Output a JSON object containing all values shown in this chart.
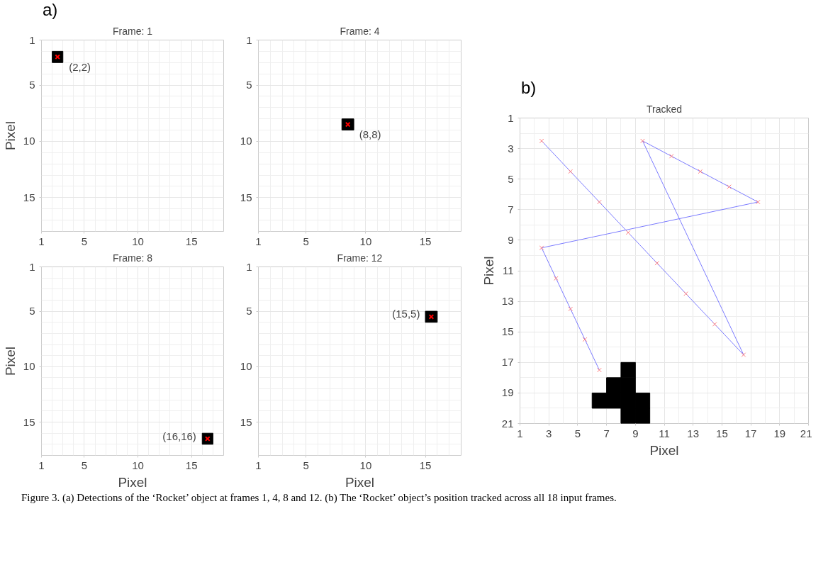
{
  "chart_data": [
    {
      "type": "scatter",
      "title": "Frame: 1",
      "ylabel": "Pixel",
      "annotations": [
        "a)",
        {
          "text": "(2,2)",
          "x": 2.5,
          "y": 2.5
        }
      ],
      "xlim": [
        1,
        18
      ],
      "ylim": [
        18,
        1
      ],
      "xticks": [
        1,
        5,
        10,
        15
      ],
      "yticks": [
        1,
        5,
        10,
        15
      ],
      "grid": true,
      "series": [
        {
          "type": "scatter",
          "marker": "square",
          "color": "#000000",
          "x": [
            2.5
          ],
          "values": [
            2.5
          ]
        },
        {
          "type": "scatter",
          "marker": "cross",
          "color": "#ff0000",
          "x": [
            2.5
          ],
          "values": [
            2.5
          ]
        }
      ]
    },
    {
      "type": "scatter",
      "title": "Frame: 4",
      "annotations": [
        {
          "text": "(8,8)",
          "x": 8.5,
          "y": 8.5
        }
      ],
      "xlim": [
        1,
        18
      ],
      "ylim": [
        18,
        1
      ],
      "xticks": [
        1,
        5,
        10,
        15
      ],
      "yticks": [
        1,
        5,
        10,
        15
      ],
      "grid": true,
      "series": [
        {
          "type": "scatter",
          "marker": "square",
          "color": "#000000",
          "x": [
            8.5
          ],
          "values": [
            8.5
          ]
        },
        {
          "type": "scatter",
          "marker": "cross",
          "color": "#ff0000",
          "x": [
            8.5
          ],
          "values": [
            8.5
          ]
        }
      ]
    },
    {
      "type": "scatter",
      "title": "Frame: 8",
      "xlabel": "Pixel",
      "ylabel": "Pixel",
      "annotations": [
        {
          "text": "(16,16)",
          "x": 16.5,
          "y": 16.5
        }
      ],
      "xlim": [
        1,
        18
      ],
      "ylim": [
        18,
        1
      ],
      "xticks": [
        1,
        5,
        10,
        15
      ],
      "yticks": [
        1,
        5,
        10,
        15
      ],
      "grid": true,
      "series": [
        {
          "type": "scatter",
          "marker": "square",
          "color": "#000000",
          "x": [
            16.5
          ],
          "values": [
            16.5
          ]
        },
        {
          "type": "scatter",
          "marker": "cross",
          "color": "#ff0000",
          "x": [
            16.5
          ],
          "values": [
            16.5
          ]
        }
      ]
    },
    {
      "type": "scatter",
      "title": "Frame: 12",
      "xlabel": "Pixel",
      "annotations": [
        {
          "text": "(15,5)",
          "x": 15.5,
          "y": 5.5
        }
      ],
      "xlim": [
        1,
        18
      ],
      "ylim": [
        18,
        1
      ],
      "xticks": [
        1,
        5,
        10,
        15
      ],
      "yticks": [
        1,
        5,
        10,
        15
      ],
      "grid": true,
      "series": [
        {
          "type": "scatter",
          "marker": "square",
          "color": "#000000",
          "x": [
            15.5
          ],
          "values": [
            5.5
          ]
        },
        {
          "type": "scatter",
          "marker": "cross",
          "color": "#ff0000",
          "x": [
            15.5
          ],
          "values": [
            5.5
          ]
        }
      ]
    },
    {
      "type": "line",
      "title": "Tracked",
      "xlabel": "Pixel",
      "ylabel": "Pixel",
      "annotations": [
        "b)",
        "Figure 3. (a) Detections of the ‘Rocket’ object at frames 1, 4, 8 and 12. (b) The ‘Rocket’ object’s position tracked across all 18 input frames."
      ],
      "xlim": [
        1,
        21
      ],
      "ylim": [
        21,
        1
      ],
      "xticks": [
        1,
        3,
        5,
        7,
        9,
        11,
        13,
        15,
        17,
        19,
        21
      ],
      "yticks": [
        1,
        3,
        5,
        7,
        9,
        11,
        13,
        15,
        17,
        19,
        21
      ],
      "grid": true,
      "series": [
        {
          "type": "scatter",
          "marker": "square",
          "color": "#000000",
          "x": [
            8.5,
            7.5,
            8.5,
            6.5,
            7.5,
            8.5,
            9.5,
            8.5,
            9.5
          ],
          "values": [
            17.5,
            18.5,
            18.5,
            19.5,
            19.5,
            19.5,
            19.5,
            20.5,
            20.5
          ]
        },
        {
          "type": "line",
          "marker": "none",
          "color": "#7b7bff",
          "x": [
            2.5,
            4.5,
            6.5,
            8.5,
            10.5,
            12.5,
            14.5,
            16.5,
            9.5,
            11.5,
            13.5,
            15.5,
            17.5,
            2.5,
            3.5,
            4.5,
            5.5,
            6.5
          ],
          "values": [
            2.5,
            4.5,
            6.5,
            8.5,
            10.5,
            12.5,
            14.5,
            16.5,
            2.5,
            3.5,
            4.5,
            5.5,
            6.5,
            9.5,
            11.5,
            13.5,
            15.5,
            17.5
          ]
        },
        {
          "type": "scatter",
          "marker": "cross",
          "color": "#ff8080",
          "x": [
            2.5,
            4.5,
            6.5,
            8.5,
            10.5,
            12.5,
            14.5,
            16.5,
            9.5,
            11.5,
            13.5,
            15.5,
            17.5,
            2.5,
            3.5,
            4.5,
            5.5,
            6.5
          ],
          "values": [
            2.5,
            4.5,
            6.5,
            8.5,
            10.5,
            12.5,
            14.5,
            16.5,
            2.5,
            3.5,
            4.5,
            5.5,
            6.5,
            9.5,
            11.5,
            13.5,
            15.5,
            17.5
          ]
        }
      ]
    }
  ]
}
